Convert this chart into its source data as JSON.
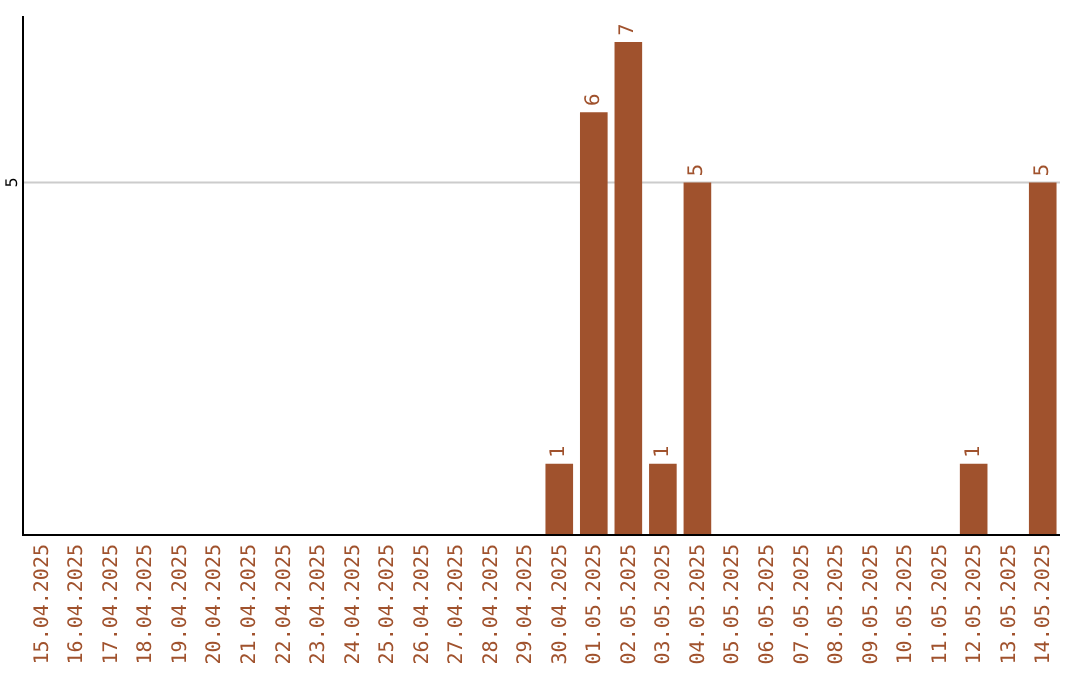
{
  "chart_data": {
    "type": "bar",
    "categories": [
      "15.04.2025",
      "16.04.2025",
      "17.04.2025",
      "18.04.2025",
      "19.04.2025",
      "20.04.2025",
      "21.04.2025",
      "22.04.2025",
      "23.04.2025",
      "24.04.2025",
      "25.04.2025",
      "26.04.2025",
      "27.04.2025",
      "28.04.2025",
      "29.04.2025",
      "30.04.2025",
      "01.05.2025",
      "02.05.2025",
      "03.05.2025",
      "04.05.2025",
      "05.05.2025",
      "06.05.2025",
      "07.05.2025",
      "08.05.2025",
      "09.05.2025",
      "10.05.2025",
      "11.05.2025",
      "12.05.2025",
      "13.05.2025",
      "14.05.2025"
    ],
    "values": [
      null,
      null,
      null,
      null,
      null,
      null,
      null,
      null,
      null,
      null,
      null,
      null,
      null,
      null,
      null,
      1,
      6,
      7,
      1,
      5,
      null,
      null,
      null,
      null,
      null,
      null,
      null,
      1,
      null,
      5
    ],
    "data_labels": true,
    "color": "#a0522d",
    "ref_lines": [
      {
        "axis": "y",
        "value": 5,
        "label": "5",
        "color": "#cccccc"
      }
    ],
    "legend": false
  }
}
